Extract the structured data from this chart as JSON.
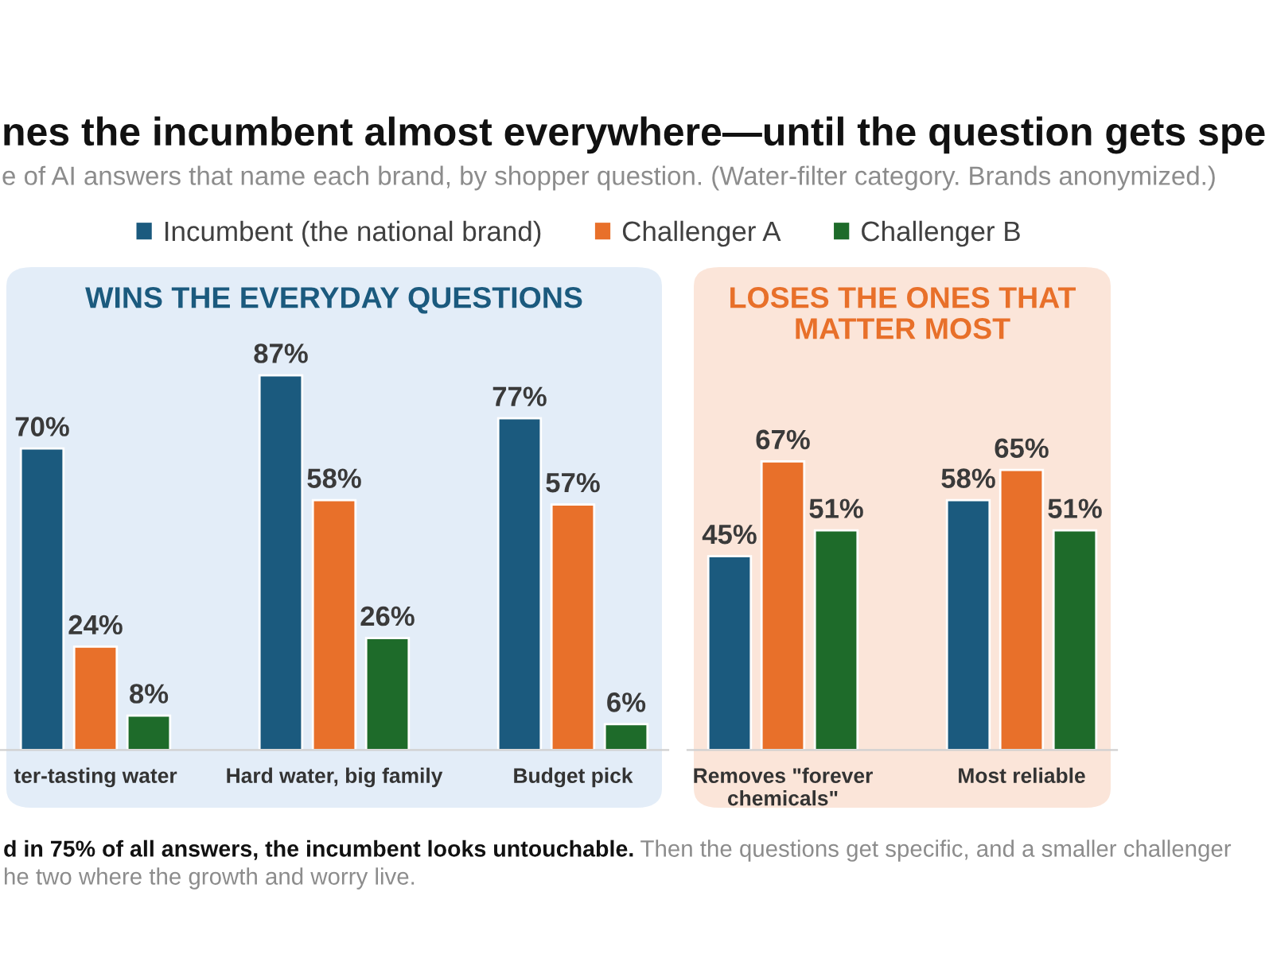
{
  "chart_data": [
    {
      "type": "bar",
      "title": "nes the incumbent almost everywhere—until the question gets spe",
      "subtitle": "e of AI answers that name each brand, by shopper question. (Water-filter category. Brands anonymized.)",
      "legend": "top",
      "tick_labels": "x",
      "categories": [
        "ter-tasting water",
        "Hard water, big family",
        "Budget pick"
      ],
      "series": [
        {
          "name": "Incumbent (the national brand)",
          "color": "#1b5a7e",
          "values": [
            70,
            87,
            77
          ],
          "value_labels": [
            "70%",
            "87%",
            "77%"
          ]
        },
        {
          "name": "Challenger A",
          "color": "#e8702a",
          "values": [
            24,
            58,
            57
          ],
          "value_labels": [
            "24%",
            "58%",
            "57%"
          ]
        },
        {
          "name": "Challenger B",
          "color": "#1e6b2a",
          "values": [
            8,
            26,
            6
          ],
          "value_labels": [
            "8%",
            "26%",
            "6%"
          ]
        }
      ],
      "annotations": [
        "WINS THE EVERYDAY QUESTIONS",
        "d in 75% of all answers, the incumbent looks untouchable.",
        "Then the questions get specific, and a smaller challenger",
        "he two where the growth and worry live."
      ]
    },
    {
      "type": "bar",
      "tick_labels": "x",
      "categories": [
        "Removes \"forever\nchemicals\"",
        "Most reliable"
      ],
      "series": [
        {
          "color": "#1b5a7e",
          "values": [
            45,
            58
          ],
          "value_labels": [
            "45%",
            "58%"
          ]
        },
        {
          "color": "#e8702a",
          "values": [
            67,
            65
          ],
          "value_labels": [
            "67%",
            "65%"
          ]
        },
        {
          "color": "#1e6b2a",
          "values": [
            51,
            51
          ],
          "value_labels": [
            "51%",
            "51%"
          ]
        }
      ],
      "annotations": [
        "LOSES THE ONES THAT\nMATTER MOST"
      ]
    }
  ]
}
